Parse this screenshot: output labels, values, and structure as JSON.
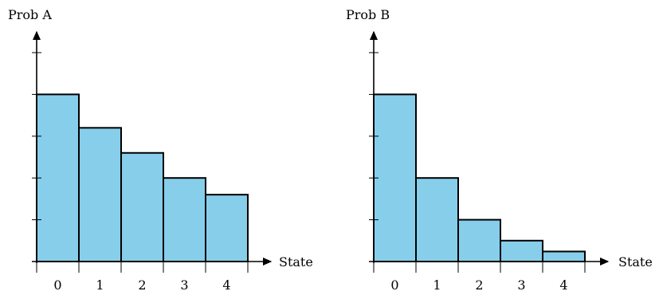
{
  "chart_data": [
    {
      "type": "bar",
      "ylabel": "Prob A",
      "xlabel": "State",
      "categories": [
        "0",
        "1",
        "2",
        "3",
        "4"
      ],
      "values": [
        0.2,
        0.16,
        0.13,
        0.1,
        0.08
      ],
      "ylim": [
        0,
        0.25
      ],
      "yticks": [
        0,
        0.05,
        0.1,
        0.15,
        0.2,
        0.25
      ],
      "ytick_labels_shown": false,
      "color": "#87ceeb",
      "grid": false
    },
    {
      "type": "bar",
      "ylabel": "Prob B",
      "xlabel": "State",
      "categories": [
        "0",
        "1",
        "2",
        "3",
        "4"
      ],
      "values": [
        0.2,
        0.1,
        0.05,
        0.025,
        0.012
      ],
      "ylim": [
        0,
        0.25
      ],
      "yticks": [
        0,
        0.05,
        0.1,
        0.15,
        0.2,
        0.25
      ],
      "ytick_labels_shown": false,
      "color": "#87ceeb",
      "grid": false
    }
  ]
}
